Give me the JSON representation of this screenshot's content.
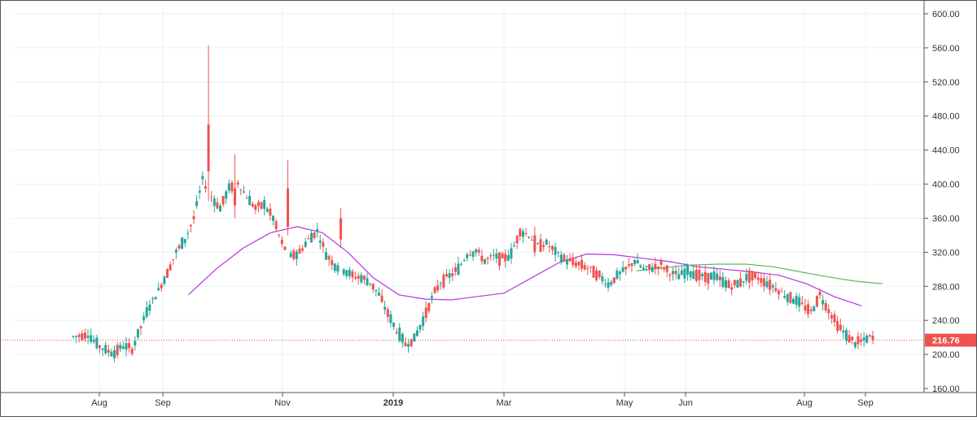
{
  "chart_data": {
    "type": "candlestick",
    "symbol_title": "",
    "y_axis": {
      "min": 160,
      "max": 600,
      "ticks": [
        "600.00",
        "560.00",
        "520.00",
        "480.00",
        "440.00",
        "400.00",
        "360.00",
        "320.00",
        "280.00",
        "240.00",
        "200.00",
        "160.00"
      ],
      "position": "right"
    },
    "x_axis": {
      "ticks": [
        "Aug",
        "Sep",
        "Nov",
        "2019",
        "Mar",
        "May",
        "Jun",
        "Aug",
        "Sep"
      ],
      "bold_tick": "2019"
    },
    "grid": true,
    "last_price": {
      "value": 216.76,
      "label": "216.76"
    },
    "colors": {
      "up": "#26a69a",
      "down": "#ef5350",
      "ma_short": "#b535e0",
      "ma_long": "#5fb55f",
      "price_line": "#ef5350",
      "grid": "#eef0f3",
      "axis": "#555555"
    },
    "candles": [],
    "series": [
      {
        "role": "ma_short",
        "points": [
          [
            "2018-09-14",
            270
          ],
          [
            "2018-09-28",
            300
          ],
          [
            "2018-10-12",
            325
          ],
          [
            "2018-10-26",
            343
          ],
          [
            "2018-11-09",
            350
          ],
          [
            "2018-11-23",
            343
          ],
          [
            "2018-12-07",
            320
          ],
          [
            "2018-12-21",
            290
          ],
          [
            "2019-01-04",
            270
          ],
          [
            "2019-01-18",
            265
          ],
          [
            "2019-02-01",
            264
          ],
          [
            "2019-02-15",
            268
          ],
          [
            "2019-03-01",
            272
          ],
          [
            "2019-03-15",
            290
          ],
          [
            "2019-03-29",
            308
          ],
          [
            "2019-04-12",
            318
          ],
          [
            "2019-04-26",
            317
          ],
          [
            "2019-05-10",
            313
          ],
          [
            "2019-05-24",
            309
          ],
          [
            "2019-06-07",
            303
          ],
          [
            "2019-06-21",
            300
          ],
          [
            "2019-07-05",
            297
          ],
          [
            "2019-07-19",
            293
          ],
          [
            "2019-08-02",
            283
          ],
          [
            "2019-08-16",
            268
          ],
          [
            "2019-08-30",
            257
          ]
        ]
      },
      {
        "role": "ma_long",
        "points": [
          [
            "2019-05-07",
            298
          ],
          [
            "2019-05-21",
            302
          ],
          [
            "2019-06-04",
            305
          ],
          [
            "2019-06-18",
            306
          ],
          [
            "2019-07-02",
            306
          ],
          [
            "2019-07-16",
            303
          ],
          [
            "2019-07-30",
            297
          ],
          [
            "2019-08-13",
            291
          ],
          [
            "2019-08-27",
            286
          ],
          [
            "2019-09-10",
            283
          ]
        ]
      }
    ]
  }
}
